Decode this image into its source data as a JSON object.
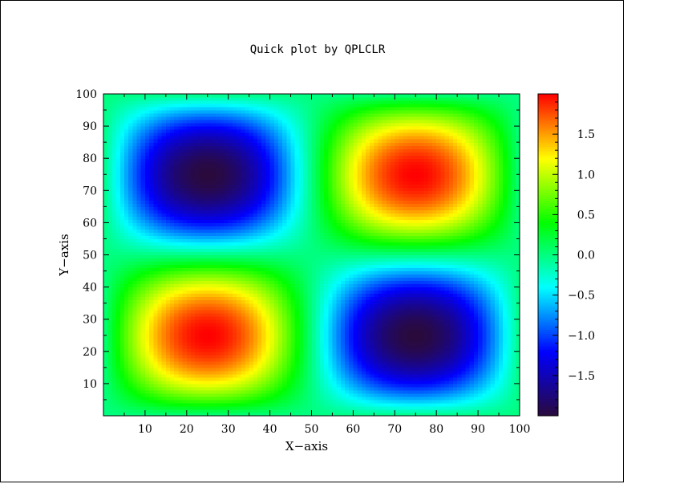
{
  "chart_data": {
    "type": "heatmap",
    "title": "Quick plot by QPLCLR",
    "xlabel": "X−axis",
    "ylabel": "Y−axis",
    "xlim": [
      0,
      100
    ],
    "ylim": [
      0,
      100
    ],
    "x_ticks": [
      10,
      20,
      30,
      40,
      50,
      60,
      70,
      80,
      90,
      100
    ],
    "y_ticks": [
      10,
      20,
      30,
      40,
      50,
      60,
      70,
      80,
      90,
      100
    ],
    "x_tick_labels": [
      "10",
      "20",
      "30",
      "40",
      "50",
      "60",
      "70",
      "80",
      "90",
      "100"
    ],
    "y_tick_labels": [
      "10",
      "20",
      "30",
      "40",
      "50",
      "60",
      "70",
      "80",
      "90",
      "100"
    ],
    "function": "z = 2 * sin(2*pi*x/100) * sin(2*pi*y/100)",
    "grid_points": 100,
    "zlim": [
      -2,
      2
    ],
    "colorbar_ticks": [
      1.5,
      1.0,
      0.5,
      0.0,
      -0.5,
      -1.0,
      -1.5
    ],
    "colorbar_tick_labels": [
      "1.5",
      "1.0",
      "0.5",
      "0.0",
      "−0.5",
      "−1.0",
      "−1.5"
    ],
    "colormap": [
      "#2a0a3c",
      "#0000ff",
      "#00ffff",
      "#00ff00",
      "#ffff00",
      "#ff0000"
    ],
    "extrema": [
      {
        "x": 25,
        "y": 75,
        "z": -2
      },
      {
        "x": 75,
        "y": 75,
        "z": 2
      },
      {
        "x": 25,
        "y": 25,
        "z": 2
      },
      {
        "x": 75,
        "y": 25,
        "z": -2
      }
    ]
  }
}
